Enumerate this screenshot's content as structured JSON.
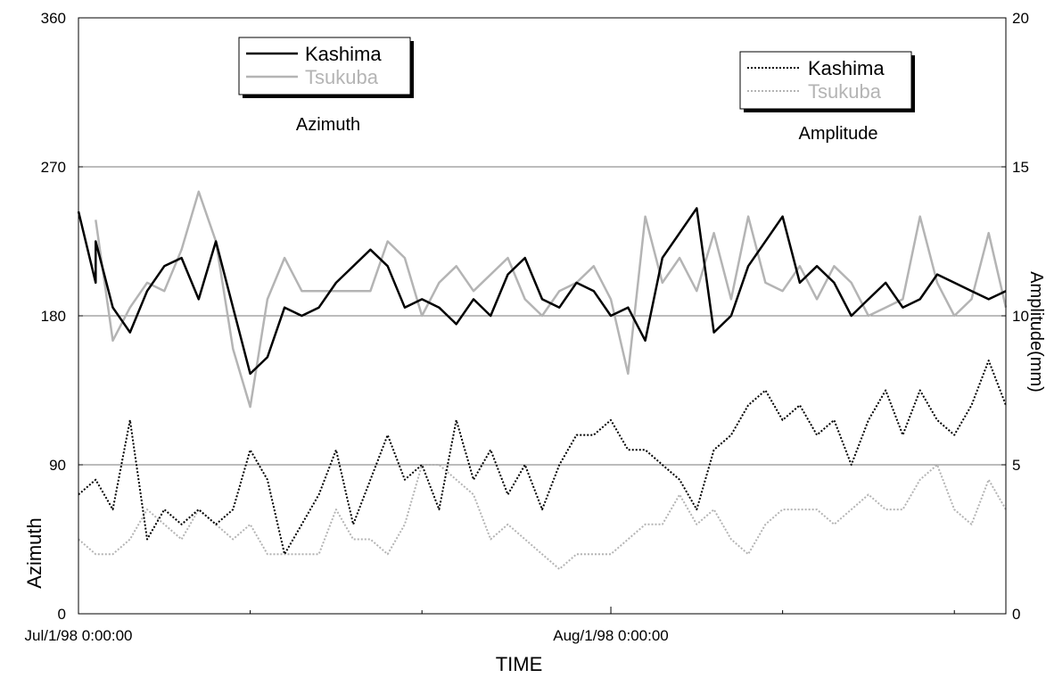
{
  "chart_data": {
    "type": "line",
    "xlabel": "TIME",
    "ylabel": "Azimuth",
    "ylabel_right": "Amplitude(mm)",
    "x_range": [
      "1998-07-01",
      "1998-08-24"
    ],
    "x_ticks": [
      {
        "date": "1998-07-01",
        "label": "Jul/1/98 0:00:00"
      },
      {
        "date": "1998-08-01",
        "label": "Aug/1/98 0:00:00"
      }
    ],
    "x_minor_tick_dates": [
      "1998-07-11",
      "1998-07-21",
      "1998-08-11",
      "1998-08-21"
    ],
    "y_left": {
      "range": [
        0,
        360
      ],
      "ticks": [
        0,
        90,
        180,
        270,
        360
      ]
    },
    "y_right": {
      "range": [
        0,
        20
      ],
      "ticks": [
        0,
        5,
        10,
        15,
        20
      ]
    },
    "grid": "horizontal at major left ticks",
    "annotations": {
      "azimuth": "Azimuth",
      "amplitude": "Amplitude"
    },
    "legends": [
      {
        "placement": "top-left",
        "entries": [
          {
            "label": "Kashima",
            "color": "#000000",
            "style": "solid"
          },
          {
            "label": "Tsukuba",
            "color": "#b4b4b4",
            "style": "solid"
          }
        ]
      },
      {
        "placement": "top-right",
        "entries": [
          {
            "label": "Kashima",
            "color": "#000000",
            "style": "dotted"
          },
          {
            "label": "Tsukuba",
            "color": "#b4b4b4",
            "style": "dotted"
          }
        ]
      }
    ],
    "series": [
      {
        "name": "Kashima",
        "quantity": "azimuth",
        "axis": "left",
        "color": "#000000",
        "style": "solid",
        "x": [
          "1998-07-01",
          "1998-07-02",
          "1998-07-02",
          "1998-07-03",
          "1998-07-04",
          "1998-07-05",
          "1998-07-06",
          "1998-07-07",
          "1998-07-08",
          "1998-07-09",
          "1998-07-10",
          "1998-07-11",
          "1998-07-12",
          "1998-07-13",
          "1998-07-14",
          "1998-07-15",
          "1998-07-16",
          "1998-07-18",
          "1998-07-19",
          "1998-07-20",
          "1998-07-21",
          "1998-07-22",
          "1998-07-23",
          "1998-07-24",
          "1998-07-25",
          "1998-07-26",
          "1998-07-27",
          "1998-07-28",
          "1998-07-29",
          "1998-07-30",
          "1998-07-31",
          "1998-08-01",
          "1998-08-02",
          "1998-08-03",
          "1998-08-04",
          "1998-08-05",
          "1998-08-06",
          "1998-08-07",
          "1998-08-08",
          "1998-08-09",
          "1998-08-11",
          "1998-08-12",
          "1998-08-13",
          "1998-08-14",
          "1998-08-15",
          "1998-08-16",
          "1998-08-17",
          "1998-08-18",
          "1998-08-19",
          "1998-08-20",
          "1998-08-21",
          "1998-08-22",
          "1998-08-23",
          "1998-08-24"
        ],
        "values": [
          243,
          200,
          225,
          185,
          170,
          195,
          210,
          215,
          190,
          225,
          185,
          145,
          155,
          185,
          180,
          185,
          200,
          220,
          210,
          185,
          190,
          185,
          175,
          190,
          180,
          205,
          215,
          190,
          185,
          200,
          195,
          180,
          185,
          165,
          215,
          230,
          245,
          170,
          180,
          210,
          240,
          200,
          210,
          200,
          180,
          190,
          200,
          185,
          190,
          205,
          200,
          195,
          190,
          195
        ]
      },
      {
        "name": "Tsukuba",
        "quantity": "azimuth",
        "axis": "left",
        "color": "#b4b4b4",
        "style": "solid",
        "x": [
          "1998-07-02",
          "1998-07-03",
          "1998-07-04",
          "1998-07-05",
          "1998-07-06",
          "1998-07-07",
          "1998-07-08",
          "1998-07-09",
          "1998-07-10",
          "1998-07-11",
          "1998-07-12",
          "1998-07-13",
          "1998-07-14",
          "1998-07-16",
          "1998-07-18",
          "1998-07-19",
          "1998-07-20",
          "1998-07-21",
          "1998-07-22",
          "1998-07-23",
          "1998-07-24",
          "1998-07-26",
          "1998-07-27",
          "1998-07-28",
          "1998-07-29",
          "1998-07-30",
          "1998-07-31",
          "1998-08-01",
          "1998-08-02",
          "1998-08-03",
          "1998-08-04",
          "1998-08-05",
          "1998-08-06",
          "1998-08-07",
          "1998-08-08",
          "1998-08-09",
          "1998-08-10",
          "1998-08-11",
          "1998-08-12",
          "1998-08-13",
          "1998-08-14",
          "1998-08-15",
          "1998-08-16",
          "1998-08-17",
          "1998-08-18",
          "1998-08-19",
          "1998-08-20",
          "1998-08-21",
          "1998-08-22",
          "1998-08-23",
          "1998-08-24"
        ],
        "values": [
          238,
          165,
          185,
          200,
          195,
          220,
          255,
          225,
          160,
          125,
          190,
          215,
          195,
          195,
          195,
          225,
          215,
          180,
          200,
          210,
          195,
          215,
          190,
          180,
          195,
          200,
          210,
          190,
          145,
          240,
          200,
          215,
          195,
          230,
          190,
          240,
          200,
          195,
          210,
          190,
          210,
          200,
          180,
          185,
          190,
          240,
          200,
          180,
          190,
          230,
          185
        ]
      },
      {
        "name": "Kashima",
        "quantity": "amplitude",
        "axis": "right",
        "color": "#000000",
        "style": "dotted",
        "x": [
          "1998-07-01",
          "1998-07-02",
          "1998-07-03",
          "1998-07-04",
          "1998-07-05",
          "1998-07-06",
          "1998-07-07",
          "1998-07-08",
          "1998-07-09",
          "1998-07-10",
          "1998-07-11",
          "1998-07-12",
          "1998-07-13",
          "1998-07-14",
          "1998-07-15",
          "1998-07-16",
          "1998-07-17",
          "1998-07-18",
          "1998-07-19",
          "1998-07-20",
          "1998-07-21",
          "1998-07-22",
          "1998-07-23",
          "1998-07-24",
          "1998-07-25",
          "1998-07-26",
          "1998-07-27",
          "1998-07-28",
          "1998-07-29",
          "1998-07-30",
          "1998-07-31",
          "1998-08-01",
          "1998-08-02",
          "1998-08-03",
          "1998-08-04",
          "1998-08-05",
          "1998-08-06",
          "1998-08-07",
          "1998-08-08",
          "1998-08-09",
          "1998-08-10",
          "1998-08-11",
          "1998-08-12",
          "1998-08-13",
          "1998-08-14",
          "1998-08-15",
          "1998-08-16",
          "1998-08-17",
          "1998-08-18",
          "1998-08-19",
          "1998-08-20",
          "1998-08-21",
          "1998-08-22",
          "1998-08-23",
          "1998-08-24"
        ],
        "values": [
          4.0,
          4.5,
          3.5,
          6.5,
          2.5,
          3.5,
          3.0,
          3.5,
          3.0,
          3.5,
          5.5,
          4.5,
          2.0,
          3.0,
          4.0,
          5.5,
          3.0,
          4.5,
          6.0,
          4.5,
          5.0,
          3.5,
          6.5,
          4.5,
          5.5,
          4.0,
          5.0,
          3.5,
          5.0,
          6.0,
          6.0,
          6.5,
          5.5,
          5.5,
          5.0,
          4.5,
          3.5,
          5.5,
          6.0,
          7.0,
          7.5,
          6.5,
          7.0,
          6.0,
          6.5,
          5.0,
          6.5,
          7.5,
          6.0,
          7.5,
          6.5,
          6.0,
          7.0,
          8.5,
          7.0
        ]
      },
      {
        "name": "Tsukuba",
        "quantity": "amplitude",
        "axis": "right",
        "color": "#b4b4b4",
        "style": "dotted",
        "x": [
          "1998-07-01",
          "1998-07-02",
          "1998-07-03",
          "1998-07-04",
          "1998-07-05",
          "1998-07-06",
          "1998-07-07",
          "1998-07-08",
          "1998-07-09",
          "1998-07-10",
          "1998-07-11",
          "1998-07-12",
          "1998-07-13",
          "1998-07-14",
          "1998-07-15",
          "1998-07-16",
          "1998-07-17",
          "1998-07-18",
          "1998-07-19",
          "1998-07-20",
          "1998-07-21",
          "1998-07-22",
          "1998-07-23",
          "1998-07-24",
          "1998-07-25",
          "1998-07-26",
          "1998-07-27",
          "1998-07-28",
          "1998-07-29",
          "1998-07-30",
          "1998-07-31",
          "1998-08-01",
          "1998-08-02",
          "1998-08-03",
          "1998-08-04",
          "1998-08-05",
          "1998-08-06",
          "1998-08-07",
          "1998-08-08",
          "1998-08-09",
          "1998-08-10",
          "1998-08-11",
          "1998-08-12",
          "1998-08-13",
          "1998-08-14",
          "1998-08-15",
          "1998-08-16",
          "1998-08-17",
          "1998-08-18",
          "1998-08-19",
          "1998-08-20",
          "1998-08-21",
          "1998-08-22",
          "1998-08-23",
          "1998-08-24"
        ],
        "values": [
          2.5,
          2.0,
          2.0,
          2.5,
          3.5,
          3.0,
          2.5,
          3.5,
          3.0,
          2.5,
          3.0,
          2.0,
          2.0,
          2.0,
          2.0,
          3.5,
          2.5,
          2.5,
          2.0,
          3.0,
          5.0,
          5.0,
          4.5,
          4.0,
          2.5,
          3.0,
          2.5,
          2.0,
          1.5,
          2.0,
          2.0,
          2.0,
          2.5,
          3.0,
          3.0,
          4.0,
          3.0,
          3.5,
          2.5,
          2.0,
          3.0,
          3.5,
          3.5,
          3.5,
          3.0,
          3.5,
          4.0,
          3.5,
          3.5,
          4.5,
          5.0,
          3.5,
          3.0,
          4.5,
          3.5
        ]
      }
    ]
  }
}
